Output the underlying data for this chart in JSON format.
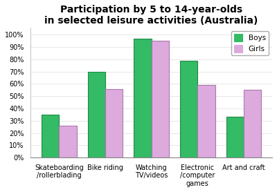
{
  "title": "Participation by 5 to 14-year-olds\nin selected leisure activities (Australia)",
  "categories": [
    "Skateboarding\n/rollerblading",
    "Bike riding",
    "Watching\nTV/videos",
    "Electronic\n/computer\ngames",
    "Art and craft"
  ],
  "boys": [
    35,
    70,
    97,
    79,
    33
  ],
  "girls": [
    26,
    56,
    95,
    59,
    55
  ],
  "boys_color": "#33bb66",
  "boys_edge_color": "#228844",
  "girls_color": "#ddaadd",
  "girls_edge_color": "#aa77aa",
  "yticks": [
    0,
    10,
    20,
    30,
    40,
    50,
    60,
    70,
    80,
    90,
    100
  ],
  "ytick_labels": [
    "0%",
    "10%",
    "20%",
    "30%",
    "40%",
    "50%",
    "60%",
    "70%",
    "80%",
    "90%",
    "100%"
  ],
  "ylim": [
    0,
    106
  ],
  "legend_labels": [
    "Boys",
    "Girls"
  ],
  "title_fontsize": 10,
  "tick_fontsize": 7,
  "xlabel_fontsize": 7,
  "legend_fontsize": 7.5,
  "bar_width": 0.38,
  "background_color": "#ffffff"
}
